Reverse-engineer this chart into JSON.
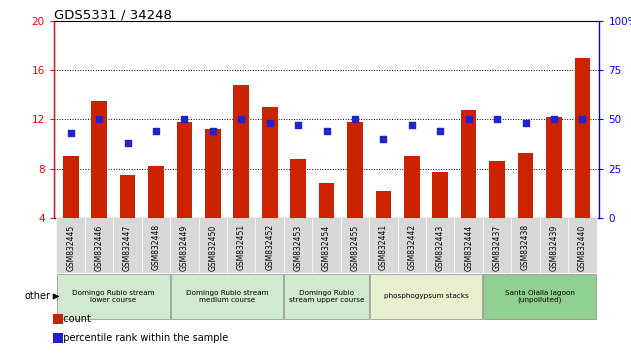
{
  "title": "GDS5331 / 34248",
  "samples": [
    "GSM832445",
    "GSM832446",
    "GSM832447",
    "GSM832448",
    "GSM832449",
    "GSM832450",
    "GSM832451",
    "GSM832452",
    "GSM832453",
    "GSM832454",
    "GSM832455",
    "GSM832441",
    "GSM832442",
    "GSM832443",
    "GSM832444",
    "GSM832437",
    "GSM832438",
    "GSM832439",
    "GSM832440"
  ],
  "counts": [
    9.0,
    13.5,
    7.5,
    8.2,
    11.8,
    11.2,
    14.8,
    13.0,
    8.8,
    6.8,
    11.8,
    6.2,
    9.0,
    7.7,
    12.8,
    8.6,
    9.3,
    12.2,
    17.0
  ],
  "percentiles": [
    43,
    50,
    38,
    44,
    50,
    44,
    50,
    48,
    47,
    44,
    50,
    40,
    47,
    44,
    50,
    50,
    48,
    50,
    50
  ],
  "bar_color": "#cc2200",
  "dot_color": "#2222cc",
  "ylim_left": [
    4,
    20
  ],
  "ylim_right": [
    0,
    100
  ],
  "yticks_left": [
    4,
    8,
    12,
    16,
    20
  ],
  "yticks_right": [
    0,
    25,
    50,
    75,
    100
  ],
  "groups": [
    {
      "label": "Domingo Rubio stream\nlower course",
      "start": 0,
      "end": 4,
      "color": "#d0ead0"
    },
    {
      "label": "Domingo Rubio stream\nmedium course",
      "start": 4,
      "end": 8,
      "color": "#d0ead0"
    },
    {
      "label": "Domingo Rubio\nstream upper course",
      "start": 8,
      "end": 11,
      "color": "#d0ead0"
    },
    {
      "label": "phosphogypsum stacks",
      "start": 11,
      "end": 15,
      "color": "#e8f0d0"
    },
    {
      "label": "Santa Olalla lagoon\n(unpolluted)",
      "start": 15,
      "end": 19,
      "color": "#90d090"
    }
  ],
  "legend_count_label": "count",
  "legend_pct_label": "percentile rank within the sample",
  "other_label": "other"
}
